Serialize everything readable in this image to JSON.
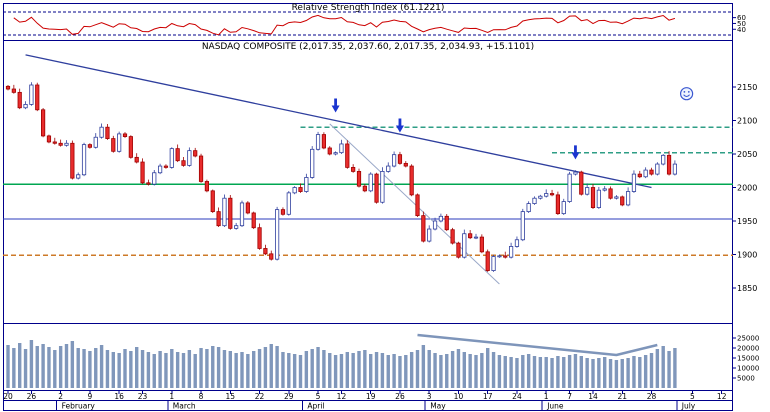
{
  "window": {
    "background": "#ffffff"
  },
  "rsi_panel": {
    "title": "Relative Strength Index (61.1221)"
  },
  "main_panel": {
    "title": "NASDAQ COMPOSITE (2,017.35, 2,037.60, 2,017.35, 2,034.93, +15.1101)"
  },
  "chart_data": {
    "type": "candlestick",
    "symbol": "NASDAQ COMPOSITE",
    "quote": {
      "open": "2,017.35",
      "high": "2,037.60",
      "low": "2,017.35",
      "close": "2,034.93",
      "change": "+15.1101"
    },
    "rsi_last": "61.1221",
    "rsi_ticks": [
      60,
      50,
      40
    ],
    "rsi_guides": [
      70,
      30
    ],
    "price_ticks": [
      2150,
      2100,
      2050,
      2000,
      1950,
      1900,
      1850
    ],
    "price_range_approx": [
      1800,
      2215
    ],
    "volume_ticks": [
      25000,
      20000,
      15000,
      10000,
      5000
    ],
    "x_ticks": [
      {
        "label": "20",
        "day": 0
      },
      {
        "label": "26",
        "day": 4
      },
      {
        "label": "2",
        "day": 9
      },
      {
        "label": "9",
        "day": 14
      },
      {
        "label": "16",
        "day": 19
      },
      {
        "label": "23",
        "day": 23
      },
      {
        "label": "1",
        "day": 28
      },
      {
        "label": "8",
        "day": 33
      },
      {
        "label": "15",
        "day": 38
      },
      {
        "label": "22",
        "day": 43
      },
      {
        "label": "29",
        "day": 48
      },
      {
        "label": "5",
        "day": 53
      },
      {
        "label": "12",
        "day": 57
      },
      {
        "label": "19",
        "day": 62
      },
      {
        "label": "26",
        "day": 67
      },
      {
        "label": "3",
        "day": 72
      },
      {
        "label": "10",
        "day": 77
      },
      {
        "label": "17",
        "day": 82
      },
      {
        "label": "24",
        "day": 87
      },
      {
        "label": "1",
        "day": 92
      },
      {
        "label": "7",
        "day": 96
      },
      {
        "label": "14",
        "day": 100
      },
      {
        "label": "21",
        "day": 105
      },
      {
        "label": "28",
        "day": 110
      },
      {
        "label": "5",
        "day": 117
      },
      {
        "label": "12",
        "day": 122
      }
    ],
    "months": [
      {
        "label": "February",
        "day": 9
      },
      {
        "label": "March",
        "day": 28
      },
      {
        "label": "April",
        "day": 51
      },
      {
        "label": "May",
        "day": 72
      },
      {
        "label": "June",
        "day": 92
      },
      {
        "label": "July",
        "day": 115
      }
    ],
    "closes": [
      2147,
      2142,
      2119,
      2124,
      2153,
      2116,
      2077,
      2068,
      2066,
      2063,
      2066,
      2014,
      2019,
      2064,
      2060,
      2075,
      2090,
      2073,
      2054,
      2080,
      2076,
      2045,
      2038,
      2007,
      2005,
      2022,
      2032,
      2030,
      2058,
      2040,
      2033,
      2055,
      2047,
      2009,
      1995,
      1964,
      1943,
      1984,
      1939,
      1943,
      1977,
      1962,
      1940,
      1909,
      1901,
      1893,
      1967,
      1960,
      1992,
      2000,
      1994,
      2015,
      2057,
      2079,
      2059,
      2050,
      2052,
      2065,
      2030,
      2024,
      2002,
      1995,
      2020,
      1978,
      2024,
      2032,
      2049,
      2036,
      2032,
      1989,
      1958,
      1920,
      1938,
      1950,
      1957,
      1937,
      1917,
      1896,
      1931,
      1925,
      1926,
      1904,
      1876,
      1897,
      1898,
      1896,
      1912,
      1922,
      1964,
      1976,
      1984,
      1987,
      1991,
      1989,
      1961,
      1979,
      2020,
      2023,
      1990,
      2000,
      1970,
      1996,
      1998,
      1984,
      1986,
      1974,
      1994,
      2020,
      2016,
      2026,
      2020,
      2035,
      2048,
      2020,
      2034.93
    ],
    "volumes": [
      21500,
      20000,
      22500,
      19500,
      24000,
      21000,
      22000,
      20500,
      19000,
      21000,
      22000,
      23500,
      20000,
      19500,
      18500,
      20000,
      21500,
      19000,
      18000,
      17500,
      19500,
      18500,
      20500,
      19000,
      18000,
      17000,
      18500,
      17500,
      19500,
      18000,
      17500,
      19000,
      17000,
      20000,
      19500,
      21000,
      20500,
      19000,
      18500,
      17500,
      18000,
      17000,
      18500,
      19500,
      20500,
      22000,
      21000,
      18000,
      17500,
      17000,
      16500,
      18500,
      19500,
      20500,
      19000,
      17500,
      16500,
      17000,
      18000,
      17500,
      18500,
      19000,
      17000,
      18000,
      17500,
      16500,
      17000,
      16000,
      16500,
      18000,
      19000,
      21500,
      19000,
      17500,
      16500,
      17000,
      18500,
      19500,
      18000,
      17000,
      16500,
      17500,
      20000,
      18000,
      16500,
      16000,
      15500,
      15000,
      16500,
      17000,
      16000,
      15500,
      15500,
      15000,
      16000,
      15500,
      16500,
      17000,
      16000,
      15000,
      14500,
      15000,
      15500,
      14500,
      14000,
      14500,
      15000,
      16000,
      15500,
      16500,
      17500,
      19500,
      21000,
      18500,
      20000
    ],
    "annotations": {
      "horizontal_lines": [
        {
          "value": 2090,
          "style": "dashed",
          "color": "#2e9e86",
          "from_day": 50,
          "to_day": 124
        },
        {
          "value": 2052,
          "style": "dashed",
          "color": "#2e9e86",
          "from_day": 93,
          "to_day": 124
        },
        {
          "value": 2005,
          "style": "solid",
          "color": "#00a651",
          "from_day": 0,
          "to_day": 124
        },
        {
          "value": 1953,
          "style": "solid",
          "color": "#2b3bbd",
          "from_day": 0,
          "to_day": 124
        },
        {
          "value": 1899,
          "style": "dashed",
          "color": "#cd7a28",
          "from_day": 0,
          "to_day": 124
        }
      ],
      "trendlines": [
        {
          "from": {
            "day": 3,
            "value": 2198
          },
          "to": {
            "day": 110,
            "value": 2000
          },
          "color": "#2f3f9e",
          "width": 1.3
        },
        {
          "from": {
            "day": 55,
            "value": 2095
          },
          "to": {
            "day": 84,
            "value": 1856
          },
          "color": "#9aa8c8",
          "width": 1
        }
      ],
      "volume_trendline": [
        {
          "day": 70,
          "value": 26500
        },
        {
          "day": 104,
          "value": 16500
        },
        {
          "day": 111,
          "value": 21500
        }
      ],
      "arrows": [
        {
          "day": 56,
          "value": 2112
        },
        {
          "day": 67,
          "value": 2082
        },
        {
          "day": 97,
          "value": 2042
        }
      ],
      "smiley": {
        "day": 116,
        "value": 2140
      }
    },
    "colors": {
      "axis": "#00008b",
      "rsi": "#cc0000",
      "up": "#ffffff",
      "up_border": "#2f3f9e",
      "down": "#e82c2c",
      "down_border": "#a00000",
      "volume": "#8097bb",
      "volume_line": "#7e95ba",
      "arrow": "#1b35cf",
      "smiley": "#3a57d0"
    }
  }
}
